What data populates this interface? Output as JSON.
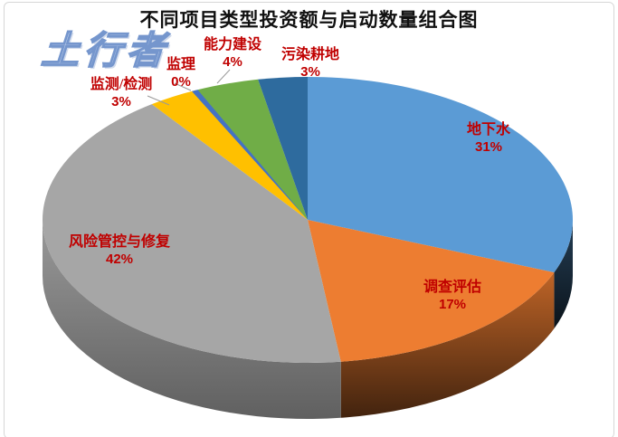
{
  "chart_data": {
    "type": "pie",
    "style": "3d",
    "title": "不同项目类型投资额与启动数量组合图",
    "legend": "none",
    "label_color": "#C00000",
    "start_angle_deg": 0,
    "direction": "clockwise",
    "unit": "percent",
    "slices": [
      {
        "name": "地下水",
        "value": 31,
        "pct_label": "31%",
        "color": "#5B9BD5"
      },
      {
        "name": "调查评估",
        "value": 17,
        "pct_label": "17%",
        "color": "#ED7D31"
      },
      {
        "name": "风险管控与修复",
        "value": 42,
        "pct_label": "42%",
        "color": "#A6A6A6"
      },
      {
        "name": "监测/检测",
        "value": 3,
        "pct_label": "3%",
        "color": "#FFC000"
      },
      {
        "name": "监理",
        "value": 0,
        "pct_label": "0%",
        "color": "#4472C4"
      },
      {
        "name": "能力建设",
        "value": 4,
        "pct_label": "4%",
        "color": "#70AD47"
      },
      {
        "name": "污染耕地",
        "value": 3,
        "pct_label": "3%",
        "color": "#2E6B9E"
      }
    ]
  },
  "watermark": "土行者"
}
